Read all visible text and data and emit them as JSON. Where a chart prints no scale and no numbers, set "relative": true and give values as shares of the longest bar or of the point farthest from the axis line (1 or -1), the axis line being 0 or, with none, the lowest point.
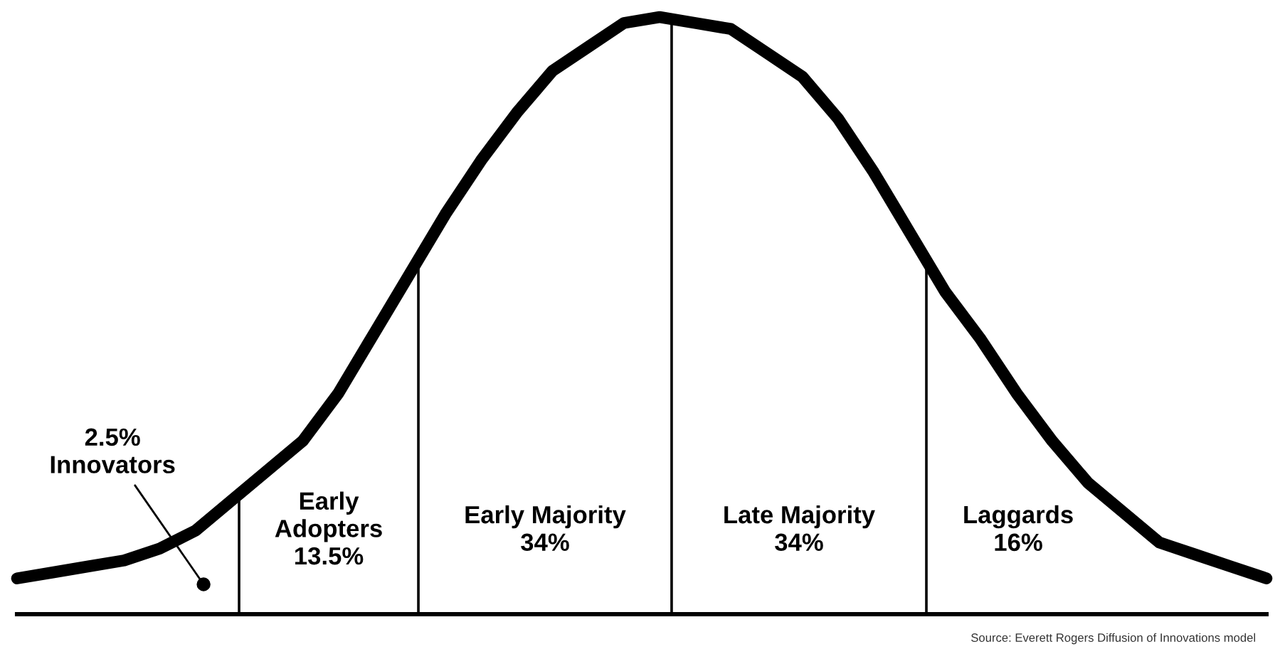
{
  "chart_data": {
    "type": "line",
    "relative": true,
    "categories": [
      null,
      null,
      null,
      null,
      null,
      null,
      null,
      null,
      null,
      null,
      null,
      null,
      null,
      null,
      null,
      null,
      null,
      null,
      null,
      null,
      null,
      null,
      null,
      null,
      null,
      null,
      null,
      null,
      null,
      null,
      null,
      null,
      null,
      null,
      null,
      null
    ],
    "series": [
      {
        "color": "#000000",
        "values": [
          0.06,
          0.07,
          0.08,
          0.09,
          0.11,
          0.14,
          0.19,
          0.24,
          0.29,
          0.37,
          0.47,
          0.57,
          0.67,
          0.76,
          0.84,
          0.91,
          0.95,
          0.99,
          1.0,
          0.99,
          0.98,
          0.94,
          0.9,
          0.83,
          0.74,
          0.64,
          0.54,
          0.46,
          0.37,
          0.29,
          0.22,
          0.17,
          0.12,
          0.1,
          0.08,
          0.06
        ]
      }
    ],
    "legend": false,
    "marker": "none",
    "line_style": "solid",
    "annotations": [
      "2.5%\nInnovators",
      "Early\nAdopters\n13.5%",
      "Early Majority\n34%",
      "Late Majority\n34%",
      "Laggards\n16%",
      "Source: Everett Rogers Diffusion of Innovations model"
    ]
  }
}
